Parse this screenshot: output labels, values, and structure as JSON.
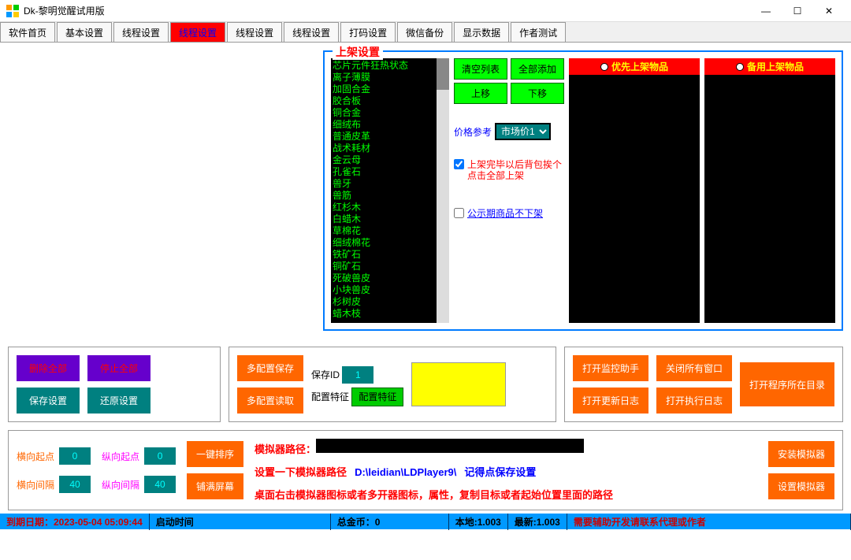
{
  "window": {
    "title": "Dk-黎明觉醒试用版"
  },
  "tabs": [
    "软件首页",
    "基本设置",
    "线程设置",
    "线程设置",
    "线程设置",
    "线程设置",
    "打码设置",
    "微信备份",
    "显示数据",
    "作者测试"
  ],
  "active_tab_index": 3,
  "fieldset": {
    "title": "上架设置",
    "items": [
      "芯片元件狂热状态",
      "离子薄膜",
      "加固合金",
      "胶合板",
      "铜合金",
      "细绒布",
      "普通皮革",
      "战术耗材",
      "金云母",
      "孔雀石",
      "兽牙",
      "兽筋",
      "红杉木",
      "白蜡木",
      "草棉花",
      "细绒棉花",
      "铁矿石",
      "铜矿石",
      "死破兽皮",
      "小块兽皮",
      "杉树皮",
      "蜡木枝"
    ],
    "btn_clear": "清空列表",
    "btn_addall": "全部添加",
    "btn_up": "上移",
    "btn_down": "下移",
    "price_label": "价格参考",
    "price_value": "市场价1",
    "check1": "上架完毕以后背包挨个点击全部上架",
    "check2": "公示期商品不下架",
    "prio_header": "优先上架物品",
    "backup_header": "备用上架物品"
  },
  "mid": {
    "btn_p1": "删除全部",
    "btn_p2": "停止全部",
    "btn_save": "保存设置",
    "btn_restore": "还原设置",
    "btn_multi_save": "多配置保存",
    "btn_multi_read": "多配置读取",
    "save_id_label": "保存ID",
    "save_id_val": "1",
    "cfg_feat_label": "配置特征",
    "cfg_feat_btn": "配置特征",
    "btn_open_monitor": "打开监控助手",
    "btn_close_all": "关闭所有窗口",
    "btn_open_update": "打开更新日志",
    "btn_open_exec": "打开执行日志",
    "btn_open_dir": "打开程序所在目录"
  },
  "bottom": {
    "hstart_label": "横向起点",
    "hstart": "0",
    "vstart_label": "纵向起点",
    "vstart": "0",
    "hgap_label": "横向间隔",
    "hgap": "40",
    "vgap_label": "纵向间隔",
    "vgap": "40",
    "btn_sort": "一键排序",
    "btn_tile": "铺满屏幕",
    "emu_path_label": "模拟器路径：",
    "set_path_label": "设置一下模拟器路径",
    "path_value": "D:\\leidian\\LDPlayer9\\",
    "remember": "记得点保存设置",
    "hint": "桌面右击模拟器图标或者多开器图标，属性，复制目标或者起始位置里面的路径",
    "btn_install": "安装模拟器",
    "btn_set_emu": "设置模拟器"
  },
  "status": {
    "expire": "到期日期：2023-05-04 05:09:44",
    "start": "启动时间",
    "gold": "总金币：0",
    "local": "本地:1.003",
    "latest": "最新:1.003",
    "contact": "需要辅助开发请联系代理或作者"
  },
  "colors": {
    "orange": "#ff6600",
    "teal": "#008080",
    "purple": "#6600cc",
    "red": "#ff0000",
    "green": "#00ff00",
    "yellow": "#ffff00",
    "status_bg": "#0099ff"
  }
}
